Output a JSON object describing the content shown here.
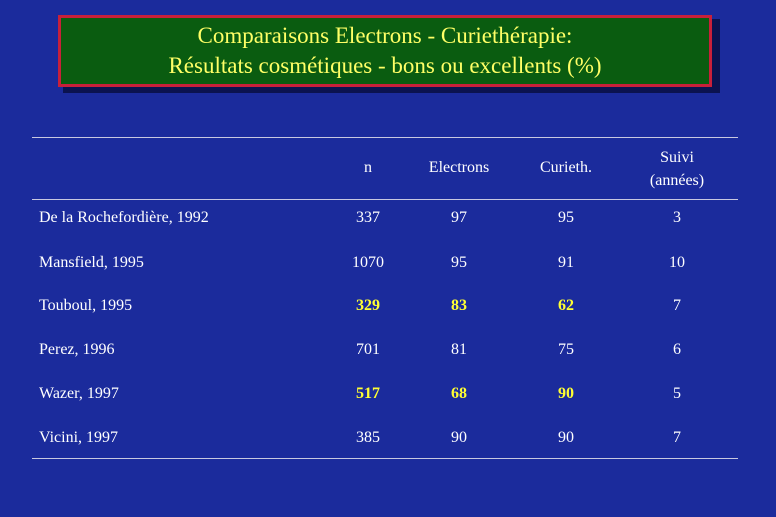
{
  "title": {
    "line1": "Comparaisons Electrons - Curiethérapie:",
    "line2": "Résultats cosmétiques - bons ou excellents (%)"
  },
  "table": {
    "headers": {
      "n": "n",
      "electrons": "Electrons",
      "curieth": "Curieth.",
      "suivi_line1": "Suivi",
      "suivi_line2": "(années)"
    },
    "rows": [
      {
        "study": "De la Rochefordière, 1992",
        "n": "337",
        "electrons": "97",
        "curieth": "95",
        "suivi": "3",
        "highlight": false
      },
      {
        "study": "Mansfield, 1995",
        "n": "1070",
        "electrons": "95",
        "curieth": "91",
        "suivi": "10",
        "highlight": false
      },
      {
        "study": "Touboul, 1995",
        "n": "329",
        "electrons": "83",
        "curieth": "62",
        "suivi": "7",
        "highlight": true
      },
      {
        "study": "Perez, 1996",
        "n": "701",
        "electrons": "81",
        "curieth": "75",
        "suivi": "6",
        "highlight": false
      },
      {
        "study": "Wazer, 1997",
        "n": "517",
        "electrons": "68",
        "curieth": "90",
        "suivi": "5",
        "highlight": true
      },
      {
        "study": "Vicini, 1997",
        "n": "385",
        "electrons": "90",
        "curieth": "90",
        "suivi": "7",
        "highlight": false
      }
    ]
  },
  "colors": {
    "background": "#1b2b9c",
    "title_box": "#0a5c10",
    "title_border": "#c8203a",
    "title_text": "#ffff66",
    "highlight_text": "#ffff33"
  }
}
